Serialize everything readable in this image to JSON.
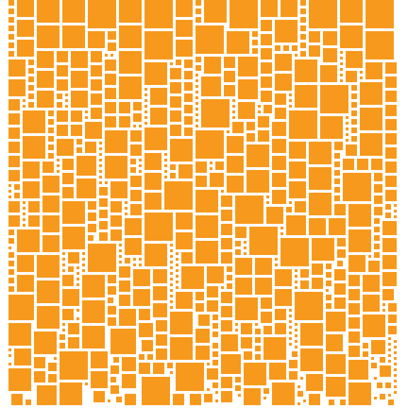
{
  "artwork": {
    "tile_color": "#F7991C",
    "background_color": "#FFFFFF",
    "pattern": "square-packing"
  }
}
